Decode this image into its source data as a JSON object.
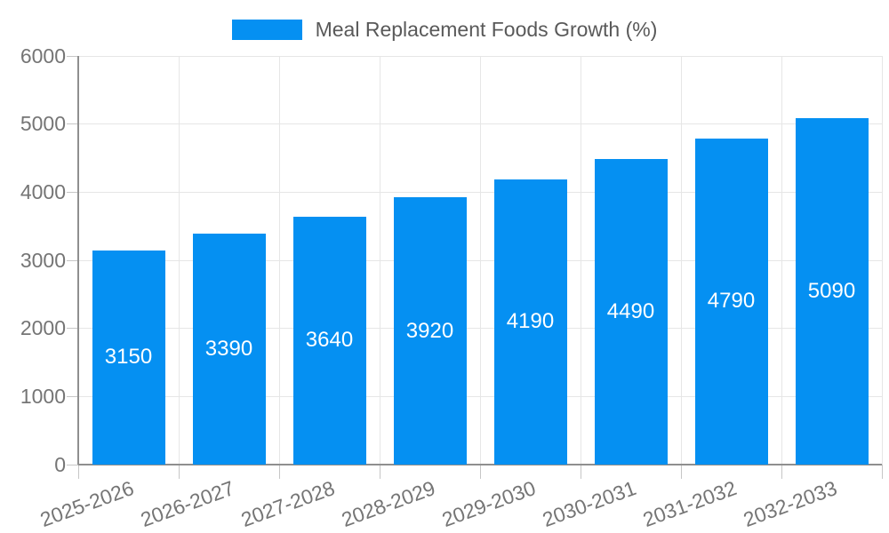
{
  "chart_data": {
    "type": "bar",
    "title": "Meal Replacement Foods Growth (%)",
    "categories": [
      "2025-2026",
      "2026-2027",
      "2027-2028",
      "2028-2029",
      "2029-2030",
      "2030-2031",
      "2031-2032",
      "2032-2033"
    ],
    "values": [
      3150,
      3390,
      3640,
      3920,
      4190,
      4490,
      4790,
      5090
    ],
    "xlabel": "",
    "ylabel": "",
    "ylim": [
      0,
      6000
    ],
    "yticks": [
      0,
      1000,
      2000,
      3000,
      4000,
      5000,
      6000
    ],
    "grid": true,
    "legend_position": "top",
    "bar_value_labels": "inside-center-white",
    "colors": {
      "bar": "#0590f2",
      "bar_label": "#ffffff",
      "axis_text": "#757575",
      "legend_text": "#595959",
      "gridline": "#e6e6e6",
      "axis_line": "#8f8f8f",
      "tick": "#c6c6c6",
      "background": "#ffffff"
    }
  }
}
